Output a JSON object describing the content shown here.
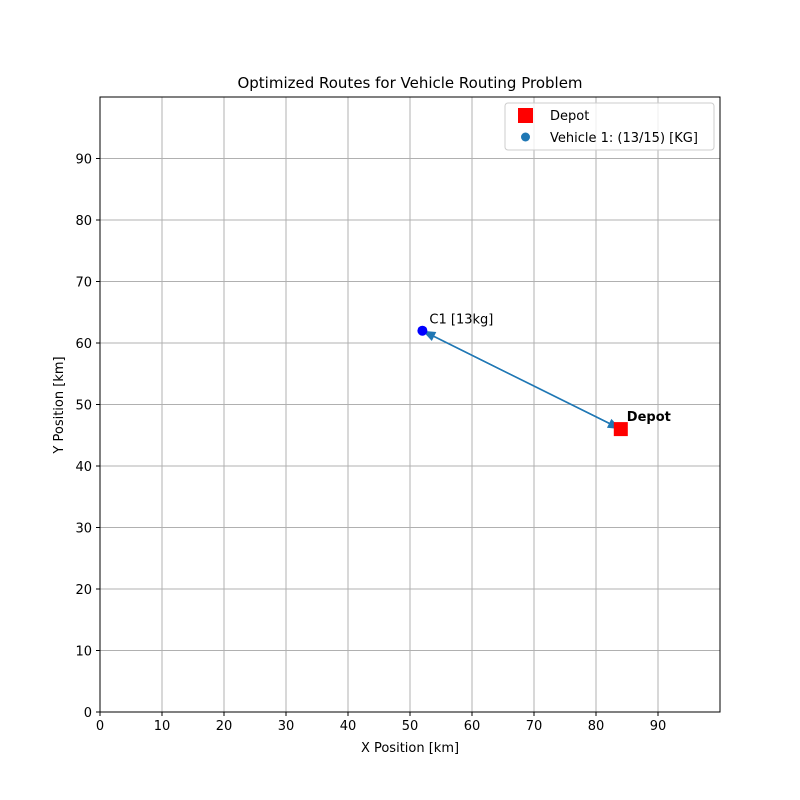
{
  "chart_data": {
    "type": "scatter",
    "title": "Optimized Routes for Vehicle Routing Problem",
    "xlabel": "X Position [km]",
    "ylabel": "Y Position [km]",
    "xlim": [
      0,
      100
    ],
    "ylim": [
      0,
      100
    ],
    "xticks": [
      0,
      10,
      20,
      30,
      40,
      50,
      60,
      70,
      80,
      90
    ],
    "yticks": [
      0,
      10,
      20,
      30,
      40,
      50,
      60,
      70,
      80,
      90
    ],
    "grid": true,
    "legend_position": "top-right",
    "legend": [
      {
        "label": "Depot",
        "marker": "square",
        "color": "#ff0000"
      },
      {
        "label": "Vehicle 1: (13/15) [KG]",
        "marker": "circle",
        "color": "#1f77b4"
      }
    ],
    "depot": {
      "x": 84,
      "y": 46,
      "label": "Depot",
      "color": "#ff0000"
    },
    "customers": [
      {
        "x": 52,
        "y": 62,
        "label": "C1 [13kg]",
        "color": "#0000ff"
      }
    ],
    "routes": [
      {
        "name": "Vehicle 1: (13/15) [KG]",
        "color": "#1f77b4",
        "path": [
          [
            84,
            46
          ],
          [
            52,
            62
          ],
          [
            84,
            46
          ]
        ]
      }
    ]
  }
}
